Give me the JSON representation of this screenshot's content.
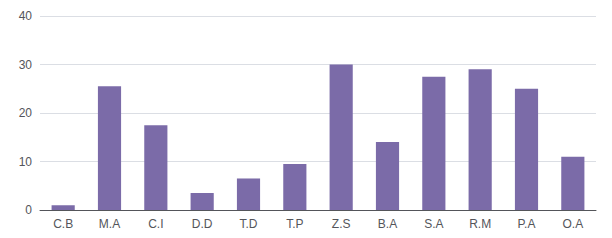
{
  "chart_data": {
    "type": "bar",
    "categories": [
      "C.B",
      "M.A",
      "C.I",
      "D.D",
      "T.D",
      "T.P",
      "Z.S",
      "B.A",
      "S.A",
      "R.M",
      "P.A",
      "O.A"
    ],
    "values": [
      1,
      25.5,
      17.5,
      3.5,
      6.5,
      9.5,
      30,
      14,
      27.5,
      29,
      25,
      11
    ],
    "color": "#7B6BA8",
    "ylim": [
      0,
      40
    ],
    "yticks": [
      0,
      10,
      20,
      30,
      40
    ],
    "grid": true
  }
}
